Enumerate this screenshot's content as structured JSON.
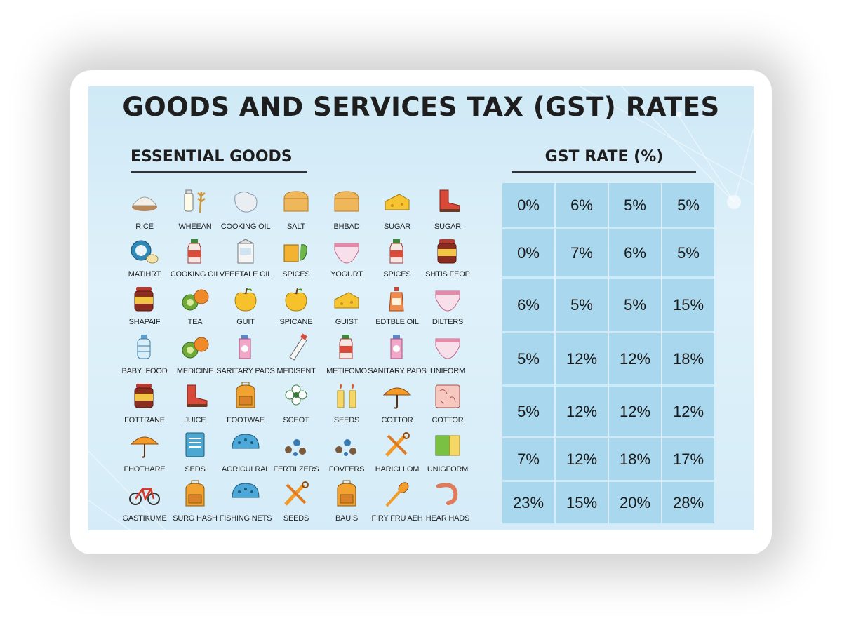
{
  "title": "GOODS AND SERVICES TAX (GST) RATES",
  "left_header": "ESSENTIAL GOODS",
  "right_header": "GST RATE (%)",
  "colors": {
    "background": "#d6edf8",
    "rate_cell": "#a9d8ee",
    "text": "#1e1e1e"
  },
  "items": [
    {
      "label": "RICE",
      "icon": "rice-bowl-icon"
    },
    {
      "label": "WHEEAN",
      "icon": "milk-wheat-icon"
    },
    {
      "label": "COOKING OIL",
      "icon": "cloth-bag-icon"
    },
    {
      "label": "SALT",
      "icon": "bread-loaf-icon"
    },
    {
      "label": "BHBAD",
      "icon": "bread-loaf-icon"
    },
    {
      "label": "SUGAR",
      "icon": "cheese-blocks-icon"
    },
    {
      "label": "SUGAR",
      "icon": "boot-icon"
    },
    {
      "label": "MATIHRT",
      "icon": "coconut-icon"
    },
    {
      "label": "COOKING OIL",
      "icon": "bottle-icon"
    },
    {
      "label": "VEEETALE OIL",
      "icon": "milk-carton-icon"
    },
    {
      "label": "SPICES",
      "icon": "grocery-box-icon"
    },
    {
      "label": "YOGURT",
      "icon": "diaper-icon"
    },
    {
      "label": "SPICES",
      "icon": "bottle-icon"
    },
    {
      "label": "SHTIS FEOP",
      "icon": "jar-icon"
    },
    {
      "label": "SHAPAIF",
      "icon": "jar-icon"
    },
    {
      "label": "TEA",
      "icon": "kiwi-fruit-icon"
    },
    {
      "label": "GUIT",
      "icon": "apple-icon"
    },
    {
      "label": "SPICANE",
      "icon": "apple-icon"
    },
    {
      "label": "GUIST",
      "icon": "cheese-blocks-icon"
    },
    {
      "label": "EDTBLE OIL",
      "icon": "soap-bottle-icon"
    },
    {
      "label": "DILTERS",
      "icon": "diaper-icon"
    },
    {
      "label": "BABY .FOOD",
      "icon": "water-bottle-icon"
    },
    {
      "label": "MEDICINE",
      "icon": "kiwi-fruit-icon"
    },
    {
      "label": "SARITARY PADS",
      "icon": "lotion-icon"
    },
    {
      "label": "MEDISENT",
      "icon": "tube-icon"
    },
    {
      "label": "METIFOMO",
      "icon": "bottle-icon"
    },
    {
      "label": "SANITARY PADS",
      "icon": "lotion-icon"
    },
    {
      "label": "UNIFORM",
      "icon": "diaper-icon"
    },
    {
      "label": "FOTTRANE",
      "icon": "jar-icon"
    },
    {
      "label": "JUICE",
      "icon": "boot-icon"
    },
    {
      "label": "FOOTWAE",
      "icon": "backpack-icon"
    },
    {
      "label": "SCEOT",
      "icon": "flower-icon"
    },
    {
      "label": "SEEDS",
      "icon": "candles-icon"
    },
    {
      "label": "COTTOR",
      "icon": "umbrella-icon"
    },
    {
      "label": "COTTOR",
      "icon": "pattern-tile-icon"
    },
    {
      "label": "FHOTHARE",
      "icon": "umbrella-icon"
    },
    {
      "label": "SEDS",
      "icon": "notebook-icon"
    },
    {
      "label": "AGRICULRAL",
      "icon": "helmet-icon"
    },
    {
      "label": "FERTILZERS",
      "icon": "seeds-icon"
    },
    {
      "label": "FOVFERS",
      "icon": "seeds-icon"
    },
    {
      "label": "HARICLLOM",
      "icon": "tools-icon"
    },
    {
      "label": "UNIGFORM",
      "icon": "folder-icon"
    },
    {
      "label": "GASTIKUME",
      "icon": "bicycle-icon"
    },
    {
      "label": "SURG HASH",
      "icon": "backpack-icon"
    },
    {
      "label": "FISHING NETS",
      "icon": "helmet-icon"
    },
    {
      "label": "SEEDS",
      "icon": "tools-icon"
    },
    {
      "label": "BAUIS",
      "icon": "backpack-icon"
    },
    {
      "label": "FIRY FRU AEH",
      "icon": "spoon-icon"
    },
    {
      "label": "HEAR HADS",
      "icon": "hook-icon"
    }
  ],
  "rates": [
    [
      "0%",
      "6%",
      "5%",
      "5%"
    ],
    [
      "0%",
      "7%",
      "6%",
      "5%"
    ],
    [
      "6%",
      "5%",
      "5%",
      "15%"
    ],
    [
      "5%",
      "12%",
      "12%",
      "18%"
    ],
    [
      "5%",
      "12%",
      "12%",
      "12%"
    ],
    [
      "7%",
      "12%",
      "18%",
      "17%"
    ],
    [
      "23%",
      "15%",
      "20%",
      "28%"
    ]
  ]
}
